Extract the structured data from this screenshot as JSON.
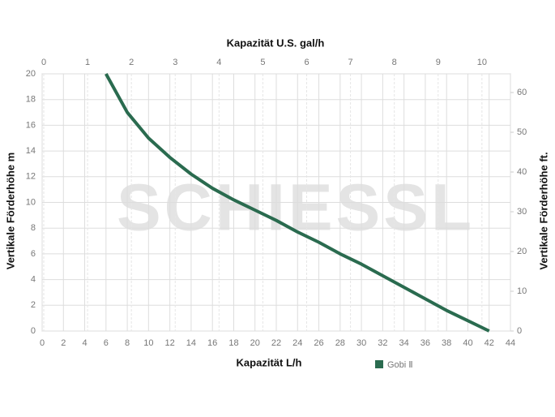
{
  "chart_data": {
    "type": "line",
    "title_top_axis": "Kapazität U.S. gal/h",
    "xlabel": "Kapazität L/h",
    "ylabel": "Vertikale Förderhöhe m",
    "y2label": "Vertikale Förderhöhe ft.",
    "watermark": "SCHIESSL",
    "x": [
      6,
      8,
      10,
      12,
      14,
      16,
      18,
      20,
      22,
      24,
      26,
      28,
      30,
      32,
      34,
      36,
      38,
      40,
      42
    ],
    "series": [
      {
        "name": "Gobi Ⅱ",
        "color": "#2a6b4f",
        "values": [
          20,
          17,
          15,
          13.5,
          12.2,
          11.1,
          10.2,
          9.4,
          8.6,
          7.7,
          6.9,
          6.0,
          5.2,
          4.3,
          3.4,
          2.5,
          1.6,
          0.8,
          0
        ]
      }
    ],
    "xlim": [
      0,
      44
    ],
    "xticks": [
      0,
      2,
      4,
      6,
      8,
      10,
      12,
      14,
      16,
      18,
      20,
      22,
      24,
      26,
      28,
      30,
      32,
      34,
      36,
      38,
      40,
      42,
      44
    ],
    "ylim": [
      0,
      20
    ],
    "yticks": [
      0,
      2,
      4,
      6,
      8,
      10,
      12,
      14,
      16,
      18,
      20
    ],
    "x2lim": [
      0,
      10.65
    ],
    "x2ticks": [
      0,
      1,
      2,
      3,
      4,
      5,
      6,
      7,
      8,
      9,
      10
    ],
    "y2lim": [
      0,
      64.7
    ],
    "y2ticks": [
      0,
      10,
      20,
      30,
      40,
      50,
      60
    ],
    "grid": true
  }
}
